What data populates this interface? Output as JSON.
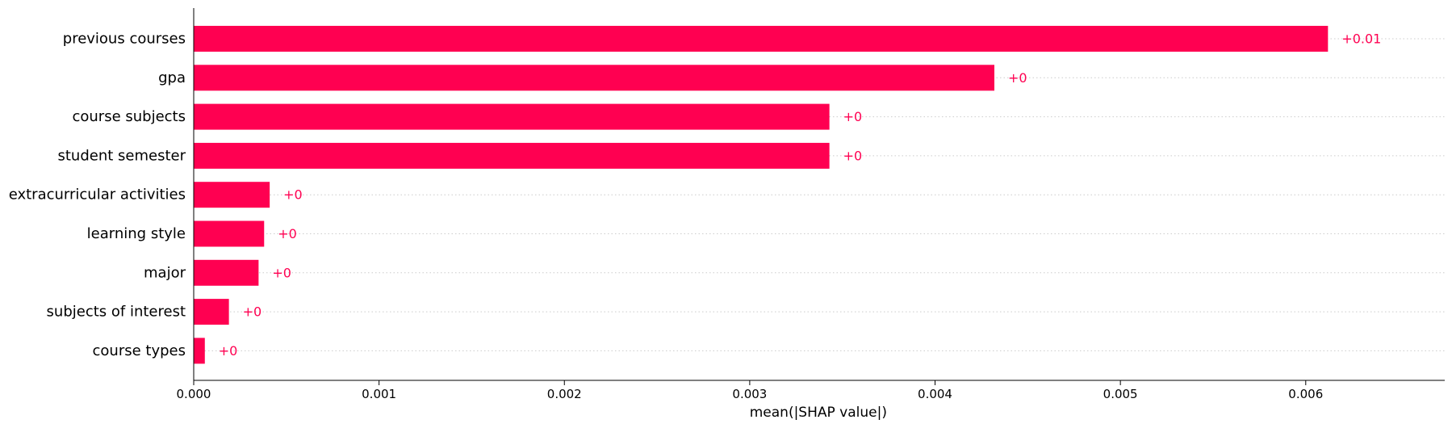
{
  "chart_data": {
    "type": "bar",
    "orientation": "horizontal",
    "categories": [
      "previous courses",
      "gpa",
      "course subjects",
      "student semester",
      "extracurricular activities",
      "learning style",
      "major",
      "subjects of interest",
      "course types"
    ],
    "values": [
      0.00612,
      0.00432,
      0.00343,
      0.00343,
      0.00041,
      0.00038,
      0.00035,
      0.00019,
      6e-05
    ],
    "value_labels": [
      "+0.01",
      "+0",
      "+0",
      "+0",
      "+0",
      "+0",
      "+0",
      "+0",
      "+0"
    ],
    "xlabel": "mean(|SHAP value|)",
    "ylabel": "",
    "xlim": [
      0,
      0.00675
    ],
    "xticks": [
      0,
      0.001,
      0.002,
      0.003,
      0.004,
      0.005,
      0.006
    ],
    "xtick_labels": [
      "0.000",
      "0.001",
      "0.002",
      "0.003",
      "0.004",
      "0.005",
      "0.006"
    ],
    "bar_color": "#ff0051",
    "label_color": "#ff0051",
    "grid": "dotted horizontal row guides",
    "legend": "none"
  }
}
